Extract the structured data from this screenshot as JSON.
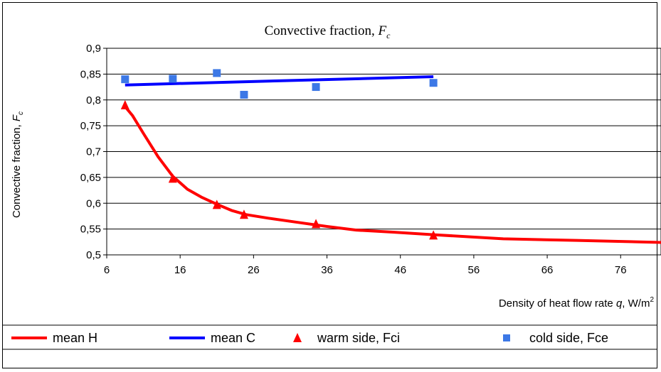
{
  "chart_data": {
    "type": "line",
    "title_text": "Convective fraction, ",
    "title_symbol": "F",
    "title_sub": "c",
    "ylabel_text": "Convective fraction, ",
    "ylabel_symbol": "F",
    "ylabel_sub": "c",
    "xlabel_text": "Density of heat flow rate ",
    "xlabel_symbol": "q",
    "xlabel_unit": ", W/m",
    "xlabel_sup": "2",
    "xlim": [
      6,
      81.5
    ],
    "ylim": [
      0.5,
      0.9
    ],
    "xticks": [
      "6",
      "16",
      "26",
      "36",
      "46",
      "56",
      "66",
      "76"
    ],
    "yticks": [
      "0,5",
      "0,55",
      "0,6",
      "0,65",
      "0,7",
      "0,75",
      "0,8",
      "0,85",
      "0,9"
    ],
    "grid": "horizontal",
    "legend_position": "bottom",
    "series": [
      {
        "name": "mean H",
        "kind": "line",
        "color": "#ff0000",
        "x": [
          8.5,
          9.5,
          11,
          13,
          15,
          17,
          19,
          21,
          23,
          25,
          28,
          32,
          36,
          40,
          45,
          50.5,
          60,
          70,
          81.5
        ],
        "y": [
          0.787,
          0.77,
          0.735,
          0.69,
          0.652,
          0.627,
          0.611,
          0.598,
          0.586,
          0.578,
          0.571,
          0.563,
          0.555,
          0.548,
          0.544,
          0.539,
          0.531,
          0.528,
          0.524
        ]
      },
      {
        "name": "mean C",
        "kind": "line",
        "color": "#0000ff",
        "x": [
          8.5,
          50.5
        ],
        "y": [
          0.829,
          0.845
        ]
      },
      {
        "name": "warm side, Fci",
        "kind": "marker",
        "marker": "triangle",
        "color": "#ff0000",
        "x": [
          8.5,
          15,
          21,
          24.7,
          34.5,
          50.5
        ],
        "y": [
          0.79,
          0.648,
          0.597,
          0.578,
          0.56,
          0.538
        ]
      },
      {
        "name": "cold side, Fce",
        "kind": "marker",
        "marker": "square",
        "color": "#3c78e6",
        "x": [
          8.5,
          15,
          21,
          24.7,
          34.5,
          50.5
        ],
        "y": [
          0.84,
          0.841,
          0.852,
          0.81,
          0.825,
          0.833
        ]
      }
    ]
  }
}
